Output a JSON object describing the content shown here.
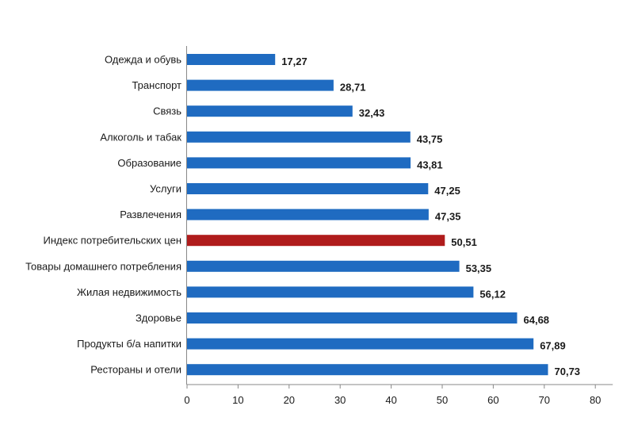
{
  "chart_data": {
    "type": "bar",
    "orientation": "horizontal",
    "categories": [
      "Одежда и обувь",
      "Транспорт",
      "Связь",
      "Алкоголь и табак",
      "Образование",
      "Услуги",
      "Развлечения",
      "Индекс потребительских цен",
      "Товары домашнего потребления",
      "Жилая недвижимость",
      "Здоровье",
      "Продукты б/а напитки",
      "Рестораны и отели"
    ],
    "values": [
      17.27,
      28.71,
      32.43,
      43.75,
      43.81,
      47.25,
      47.35,
      50.51,
      53.35,
      56.12,
      64.68,
      67.89,
      70.73
    ],
    "value_labels": [
      "17,27",
      "28,71",
      "32,43",
      "43,75",
      "43,81",
      "47,25",
      "47,35",
      "50,51",
      "53,35",
      "56,12",
      "64,68",
      "67,89",
      "70,73"
    ],
    "highlight_index": 7,
    "colors": {
      "bar": "#1f6bc1",
      "highlight": "#b01c1c",
      "axis": "#888888"
    },
    "xlim": [
      0,
      80
    ],
    "xticks": [
      0,
      10,
      20,
      30,
      40,
      50,
      60,
      70,
      80
    ],
    "title": "",
    "xlabel": "",
    "ylabel": "",
    "grid": false,
    "legend": "none"
  }
}
